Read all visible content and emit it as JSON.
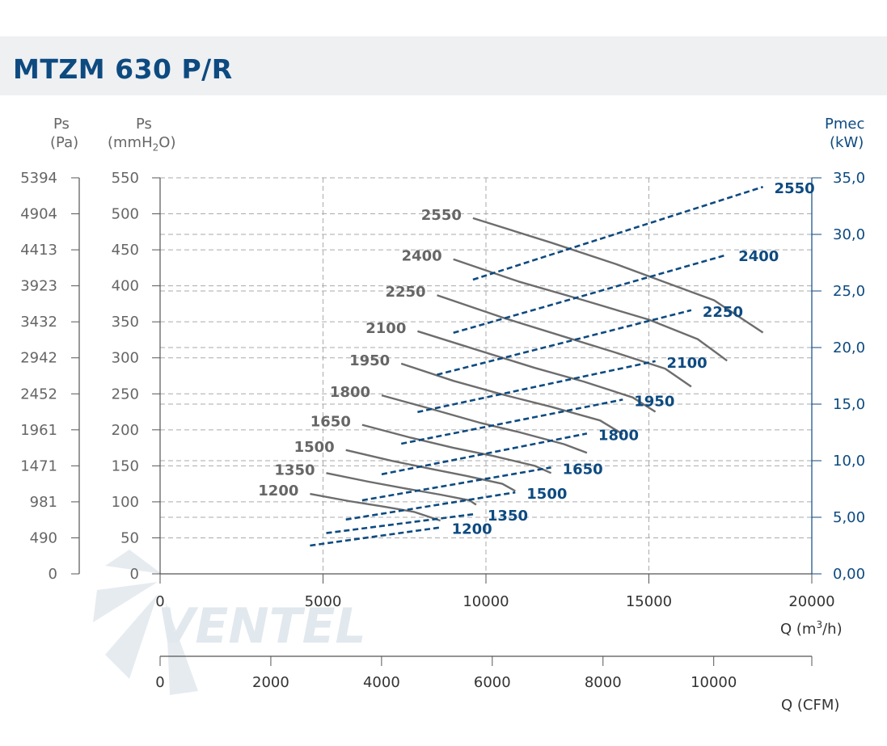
{
  "header": {
    "title": "MTZM 630 P/R"
  },
  "axes": {
    "left_pa": {
      "label_top": "Ps",
      "label_unit": "(Pa)",
      "ticks": [
        "5394",
        "4904",
        "4413",
        "3923",
        "3432",
        "2942",
        "2452",
        "1961",
        "1471",
        "981",
        "490",
        "0"
      ]
    },
    "left_mmh2o": {
      "label_top": "Ps",
      "label_unit_pre": "(mmH",
      "label_unit_sub": "2",
      "label_unit_post": "O)",
      "ticks": [
        550,
        500,
        450,
        400,
        350,
        300,
        250,
        200,
        150,
        100,
        50,
        0
      ]
    },
    "right_kw": {
      "label_top": "Pmec",
      "label_unit": "(kW)",
      "ticks": [
        "35,0",
        "30,0",
        "25,0",
        "20,0",
        "15,0",
        "10,0",
        "5,00",
        "0,00"
      ]
    },
    "x_m3h": {
      "label_pre": "Q (m",
      "label_sup": "3",
      "label_post": "/h)",
      "ticks": [
        0,
        5000,
        10000,
        15000,
        20000
      ]
    },
    "x_cfm": {
      "label": "Q (CFM)",
      "ticks": [
        0,
        2000,
        4000,
        6000,
        8000,
        10000
      ]
    }
  },
  "colors": {
    "pressure_curve": "#6d6d6d",
    "power_curve": "#0d4a80",
    "title": "#0d4a80",
    "grid": "#aaaaaa"
  },
  "chart_data": {
    "type": "line",
    "xlabel": "Q (m3/h)",
    "ylabel_left": "Ps (mmH2O)",
    "ylabel_right": "Pmec (kW)",
    "xlim": [
      0,
      20000
    ],
    "ylim_left": [
      0,
      550
    ],
    "ylim_right": [
      0,
      35
    ],
    "grid": true,
    "pressure_series": [
      {
        "name": "2550",
        "x": [
          9600,
          12000,
          14000,
          15500,
          17000,
          18500
        ],
        "y": [
          494,
          460,
          430,
          405,
          380,
          335
        ]
      },
      {
        "name": "2400",
        "x": [
          9000,
          11000,
          13000,
          15000,
          16500,
          17400
        ],
        "y": [
          437,
          406,
          380,
          353,
          326,
          296
        ]
      },
      {
        "name": "2250",
        "x": [
          8500,
          10500,
          12500,
          14000,
          15500,
          16300
        ],
        "y": [
          387,
          356,
          328,
          307,
          285,
          260
        ]
      },
      {
        "name": "2100",
        "x": [
          7900,
          9800,
          11500,
          13000,
          14500,
          15200
        ],
        "y": [
          337,
          310,
          286,
          267,
          245,
          225
        ]
      },
      {
        "name": "1950",
        "x": [
          7400,
          9000,
          10600,
          12000,
          13500,
          14200
        ],
        "y": [
          292,
          268,
          248,
          232,
          213,
          194
        ]
      },
      {
        "name": "1800",
        "x": [
          6800,
          8400,
          9800,
          11000,
          12400,
          13100
        ],
        "y": [
          248,
          228,
          210,
          197,
          180,
          168
        ]
      },
      {
        "name": "1650",
        "x": [
          6200,
          7700,
          9000,
          10200,
          11500,
          12000
        ],
        "y": [
          207,
          189,
          175,
          164,
          150,
          140
        ]
      },
      {
        "name": "1500",
        "x": [
          5700,
          7100,
          8400,
          9400,
          10500,
          10900
        ],
        "y": [
          172,
          157,
          145,
          136,
          125,
          115
        ]
      },
      {
        "name": "1350",
        "x": [
          5100,
          6400,
          7600,
          8600,
          9500,
          9700
        ],
        "y": [
          140,
          128,
          118,
          110,
          102,
          96
        ]
      },
      {
        "name": "1200",
        "x": [
          4600,
          5800,
          6900,
          7800,
          8600
        ],
        "y": [
          111,
          101,
          93,
          86,
          74
        ]
      }
    ],
    "power_series": [
      {
        "name": "2550",
        "x": [
          9600,
          18500
        ],
        "y": [
          26.0,
          34.2
        ]
      },
      {
        "name": "2400",
        "x": [
          9000,
          17400
        ],
        "y": [
          21.3,
          28.2
        ]
      },
      {
        "name": "2250",
        "x": [
          8500,
          16300
        ],
        "y": [
          17.6,
          23.3
        ]
      },
      {
        "name": "2100",
        "x": [
          7900,
          15200
        ],
        "y": [
          14.3,
          18.8
        ]
      },
      {
        "name": "1950",
        "x": [
          7400,
          14200
        ],
        "y": [
          11.5,
          15.4
        ]
      },
      {
        "name": "1800",
        "x": [
          6800,
          13100
        ],
        "y": [
          8.8,
          12.4
        ]
      },
      {
        "name": "1650",
        "x": [
          6200,
          12000
        ],
        "y": [
          6.5,
          9.4
        ]
      },
      {
        "name": "1500",
        "x": [
          5700,
          10900
        ],
        "y": [
          4.8,
          7.2
        ]
      },
      {
        "name": "1350",
        "x": [
          5100,
          9700
        ],
        "y": [
          3.6,
          5.3
        ]
      },
      {
        "name": "1200",
        "x": [
          4600,
          8600
        ],
        "y": [
          2.5,
          4.1
        ]
      }
    ]
  }
}
